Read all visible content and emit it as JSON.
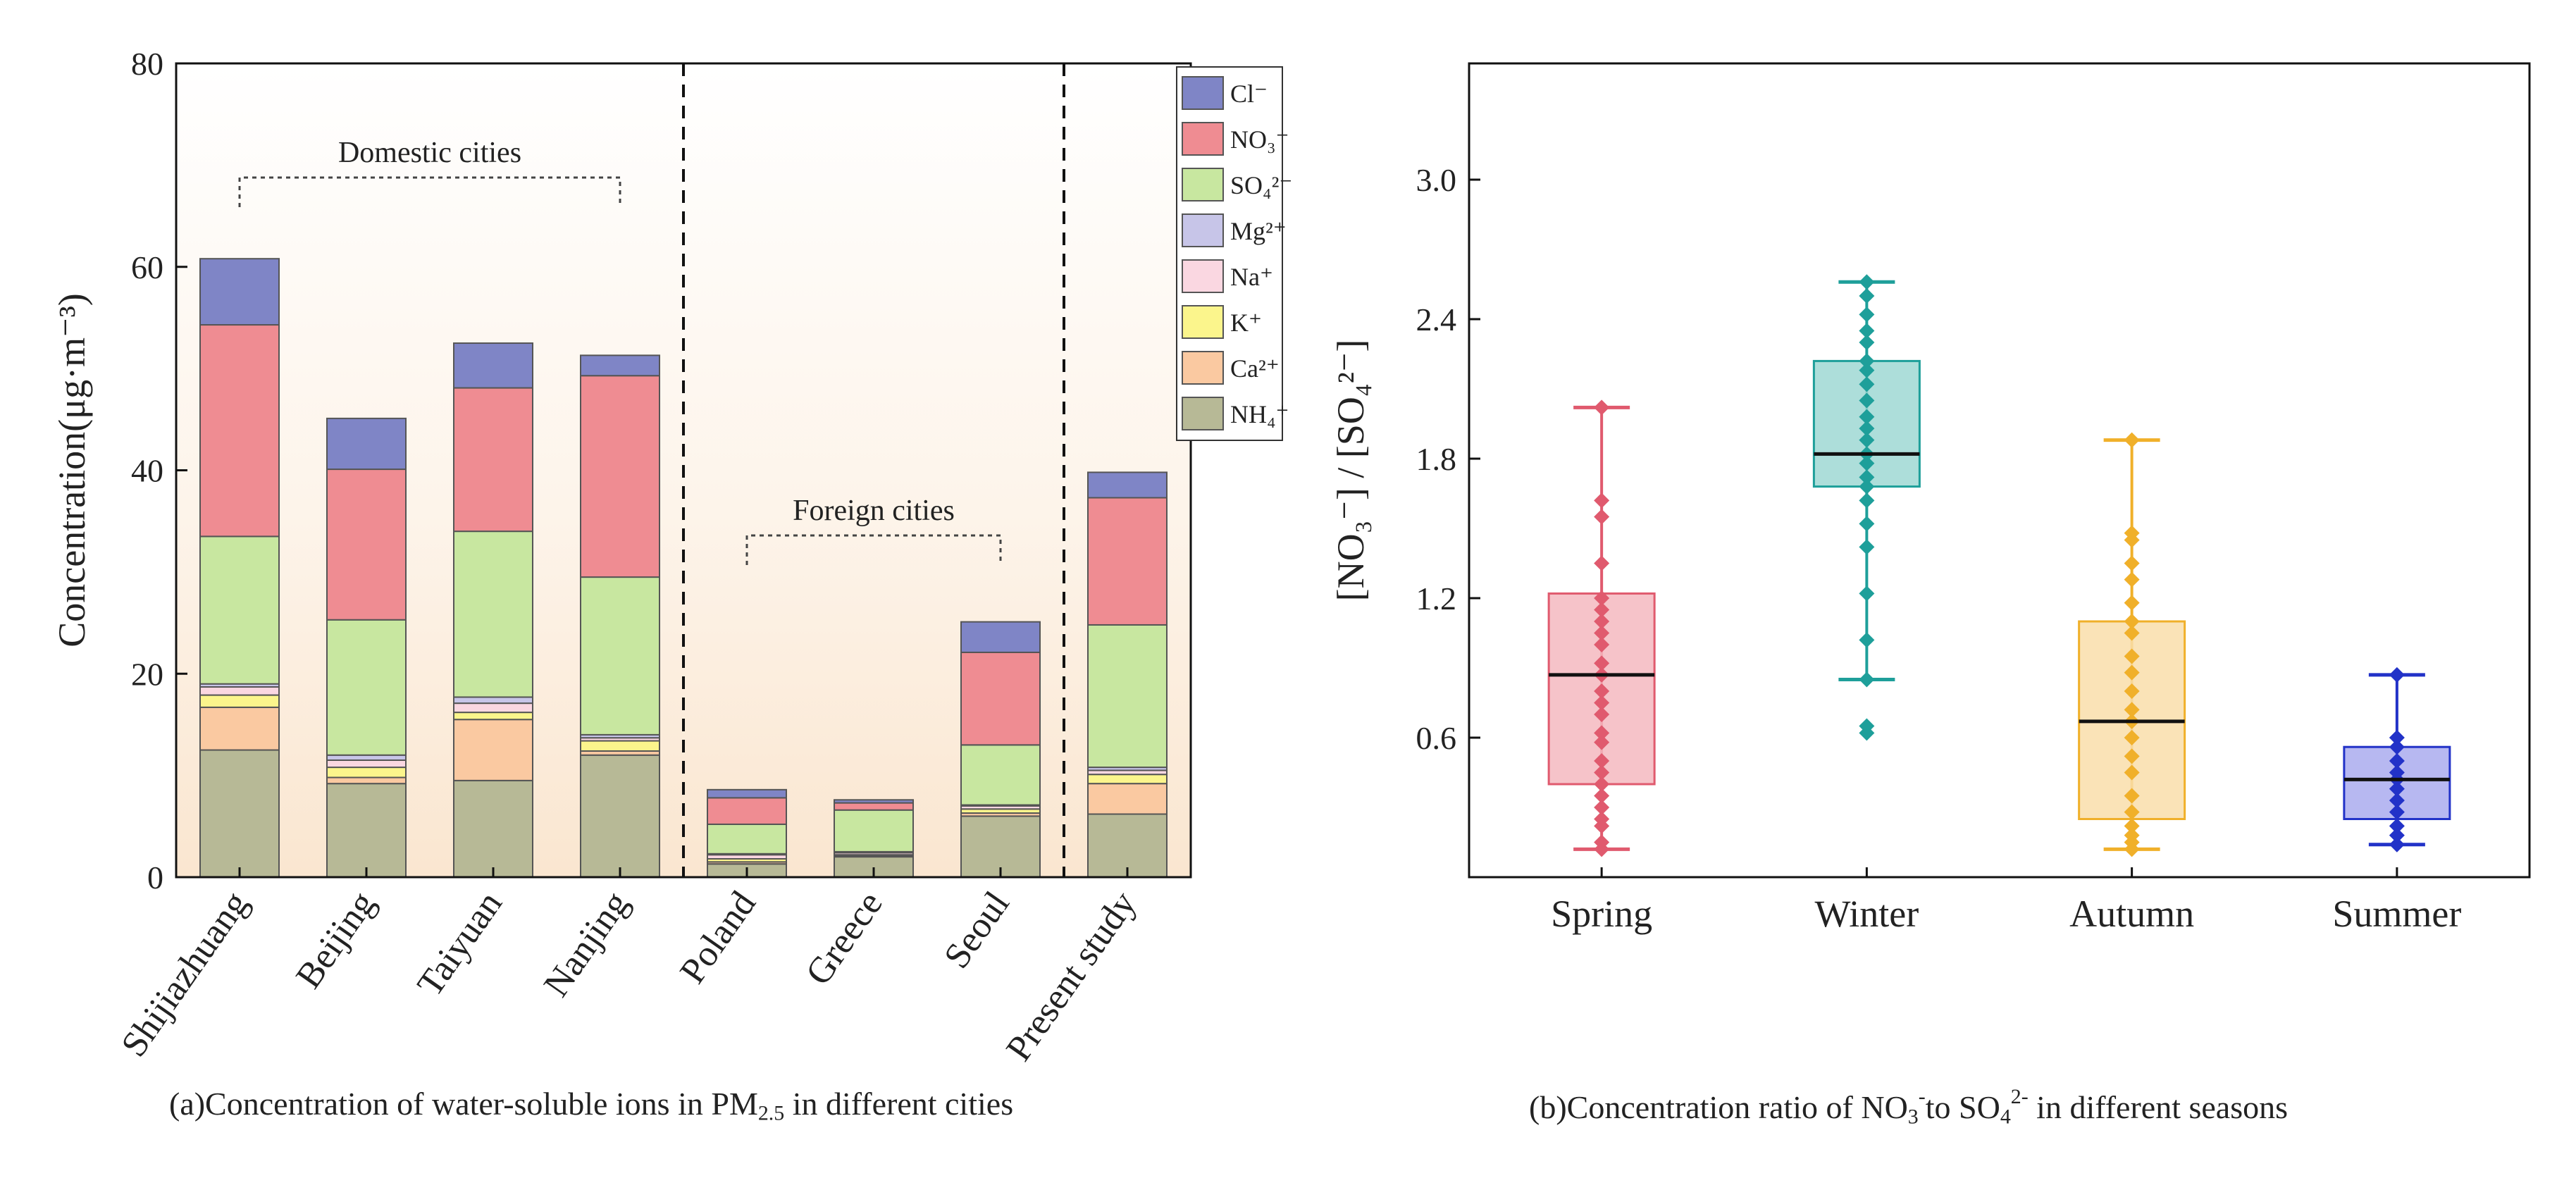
{
  "panel_a_caption_parts": [
    "(a)Concentration of water-soluble ions in PM",
    "2.5",
    " in different cities"
  ],
  "panel_b_caption_parts": [
    "(b)Concentration ratio of NO",
    "3",
    "-",
    "to SO",
    "4",
    "2-",
    " in different seasons"
  ],
  "chart_data": [
    {
      "type": "bar",
      "stacked": true,
      "ylabel": "Concentration(μg·m⁻³)",
      "ylim": [
        0,
        80
      ],
      "yticks": [
        0,
        20,
        40,
        60,
        80
      ],
      "categories": [
        "Shijiazhuang",
        "Beijing",
        "Taiyuan",
        "Nanjing",
        "Poland",
        "Greece",
        "Seoul",
        "Present study"
      ],
      "group_labels": [
        {
          "text": "Domestic cities",
          "from": "Shijiazhuang",
          "to": "Nanjing"
        },
        {
          "text": "Foreign cities",
          "from": "Poland",
          "to": "Seoul"
        }
      ],
      "dividers_after": [
        "Nanjing",
        "Seoul"
      ],
      "legend_position": "top-right",
      "series": [
        {
          "name": "NH₄⁺",
          "color": "#b7b996",
          "values": [
            12.5,
            9.2,
            9.5,
            12.0,
            1.3,
            2.0,
            6.0,
            6.2
          ]
        },
        {
          "name": "Ca²⁺",
          "color": "#fac9a1",
          "values": [
            4.2,
            0.6,
            6.0,
            0.4,
            0.2,
            0.1,
            0.3,
            3.0
          ]
        },
        {
          "name": "K⁺",
          "color": "#fbf58c",
          "values": [
            1.2,
            1.0,
            0.7,
            1.0,
            0.3,
            0.1,
            0.4,
            0.9
          ]
        },
        {
          "name": "Na⁺",
          "color": "#fad7e1",
          "values": [
            0.8,
            0.7,
            0.9,
            0.3,
            0.4,
            0.2,
            0.3,
            0.4
          ]
        },
        {
          "name": "Mg²⁺",
          "color": "#c7c5e8",
          "values": [
            0.3,
            0.5,
            0.6,
            0.3,
            0.1,
            0.1,
            0.1,
            0.3
          ]
        },
        {
          "name": "SO₄²⁻",
          "color": "#c8e7a0",
          "values": [
            14.5,
            13.3,
            16.3,
            15.5,
            2.9,
            4.1,
            5.9,
            14.0
          ]
        },
        {
          "name": "NO₃⁻",
          "color": "#ef8c92",
          "values": [
            20.8,
            14.8,
            14.1,
            19.8,
            2.6,
            0.7,
            9.1,
            12.5
          ]
        },
        {
          "name": "Cl⁻",
          "color": "#7f85c6",
          "values": [
            6.5,
            5.0,
            4.4,
            2.0,
            0.8,
            0.3,
            3.0,
            2.5
          ]
        }
      ]
    },
    {
      "type": "box",
      "ylabel": "[NO₃⁻] / [SO₄²⁻]",
      "ylim": [
        0,
        3.5
      ],
      "yticks": [
        0.6,
        1.2,
        1.8,
        2.4,
        3.0
      ],
      "categories": [
        "Spring",
        "Winter",
        "Autumn",
        "Summer"
      ],
      "boxes": [
        {
          "name": "Spring",
          "color": "#e05a6e",
          "fill": "#f4b8c0",
          "min": 0.12,
          "q1": 0.4,
          "median": 0.87,
          "q3": 1.22,
          "max": 2.02,
          "points": [
            0.12,
            0.15,
            0.22,
            0.25,
            0.3,
            0.35,
            0.4,
            0.45,
            0.5,
            0.58,
            0.62,
            0.7,
            0.75,
            0.8,
            0.87,
            0.92,
            1.0,
            1.05,
            1.1,
            1.15,
            1.2,
            1.35,
            1.55,
            1.62,
            2.02
          ]
        },
        {
          "name": "Winter",
          "color": "#1e9f9a",
          "fill": "#9fd8d4",
          "min": 0.85,
          "q1": 1.68,
          "median": 1.82,
          "q3": 2.22,
          "max": 2.56,
          "points": [
            0.62,
            0.65,
            0.85,
            1.02,
            1.22,
            1.42,
            1.52,
            1.62,
            1.68,
            1.72,
            1.78,
            1.82,
            1.88,
            1.93,
            1.98,
            2.05,
            2.12,
            2.18,
            2.22,
            2.3,
            2.35,
            2.42,
            2.5,
            2.56
          ]
        },
        {
          "name": "Autumn",
          "color": "#f0b02a",
          "fill": "#f9deaa",
          "min": 0.12,
          "q1": 0.25,
          "median": 0.67,
          "q3": 1.1,
          "max": 1.88,
          "points": [
            0.12,
            0.15,
            0.18,
            0.22,
            0.28,
            0.35,
            0.45,
            0.52,
            0.6,
            0.67,
            0.72,
            0.8,
            0.88,
            0.95,
            1.05,
            1.1,
            1.18,
            1.28,
            1.35,
            1.45,
            1.48,
            1.88
          ]
        },
        {
          "name": "Summer",
          "color": "#2232c8",
          "fill": "#aaacee",
          "min": 0.14,
          "q1": 0.25,
          "median": 0.42,
          "q3": 0.56,
          "max": 0.87,
          "points": [
            0.14,
            0.18,
            0.22,
            0.28,
            0.33,
            0.38,
            0.42,
            0.45,
            0.5,
            0.56,
            0.6,
            0.87
          ]
        }
      ]
    }
  ]
}
